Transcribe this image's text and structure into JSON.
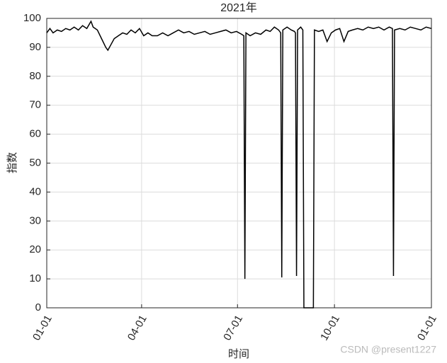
{
  "chart_data": {
    "type": "line",
    "title": "2021年",
    "x_label": "时间",
    "y_label": "指数",
    "x": [
      0,
      3,
      6,
      10,
      14,
      18,
      22,
      26,
      30,
      34,
      38,
      42,
      44,
      48,
      52,
      56,
      58,
      61,
      64,
      68,
      72,
      76,
      80,
      84,
      88,
      92,
      96,
      100,
      105,
      110,
      115,
      120,
      125,
      130,
      135,
      140,
      145,
      150,
      155,
      160,
      165,
      170,
      175,
      180,
      185,
      187,
      188,
      189,
      193,
      198,
      203,
      208,
      212,
      216,
      220,
      222,
      223,
      224,
      228,
      232,
      235,
      236,
      237,
      238,
      241,
      243,
      244,
      253,
      254,
      258,
      262,
      266,
      270,
      274,
      278,
      282,
      286,
      290,
      295,
      300,
      305,
      310,
      315,
      320,
      325,
      328,
      329,
      330,
      335,
      340,
      345,
      350,
      355,
      360,
      365
    ],
    "values": [
      95,
      96.5,
      95,
      96,
      95.5,
      96.5,
      96,
      97,
      96,
      97.5,
      96.5,
      99,
      97,
      96,
      93,
      90,
      89,
      91,
      93,
      94,
      95,
      94.5,
      96,
      95,
      96.5,
      94,
      95,
      94,
      94,
      95,
      94,
      95,
      96,
      95,
      95.5,
      94.5,
      95,
      95.5,
      94.5,
      95,
      95.5,
      96,
      95,
      95.5,
      94.5,
      94,
      10,
      95,
      94,
      95,
      94.5,
      96,
      95.5,
      97,
      96,
      95,
      10.5,
      96,
      97,
      96,
      95.5,
      95,
      11,
      96,
      97,
      96,
      0,
      0,
      96,
      95.5,
      96,
      92,
      95,
      96,
      96.5,
      92,
      95.5,
      96,
      96.5,
      96,
      97,
      96.5,
      97,
      96,
      97,
      96.5,
      11,
      96,
      96.5,
      96,
      97,
      96.5,
      96,
      97,
      96.5
    ],
    "color": "#000000",
    "xlim": [
      0,
      365
    ],
    "xticks": [
      {
        "value": 0,
        "label": "01-01"
      },
      {
        "value": 90,
        "label": "04-01"
      },
      {
        "value": 181,
        "label": "07-01"
      },
      {
        "value": 273,
        "label": "10-01"
      },
      {
        "value": 365,
        "label": "01-01"
      }
    ],
    "ylim": [
      0,
      100
    ],
    "yticks": [
      0,
      10,
      20,
      30,
      40,
      50,
      60,
      70,
      80,
      90,
      100
    ],
    "grid": true,
    "watermark": "CSDN @present1227"
  }
}
